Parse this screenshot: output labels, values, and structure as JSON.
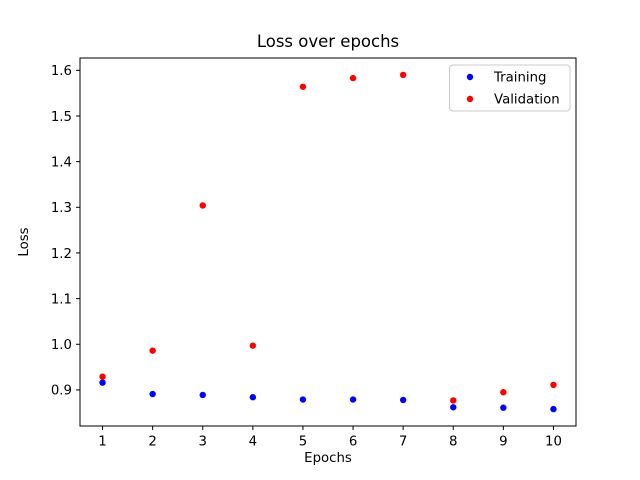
{
  "chart_data": {
    "type": "scatter",
    "title": "Loss over epochs",
    "xlabel": "Epochs",
    "ylabel": "Loss",
    "x": [
      1,
      2,
      3,
      4,
      5,
      6,
      7,
      8,
      9,
      10
    ],
    "series": [
      {
        "name": "Training",
        "color": "#0000ff",
        "values": [
          0.916,
          0.891,
          0.889,
          0.884,
          0.879,
          0.879,
          0.878,
          0.862,
          0.861,
          0.858
        ]
      },
      {
        "name": "Validation",
        "color": "#ff0000",
        "values": [
          0.929,
          0.986,
          1.304,
          0.997,
          1.564,
          1.583,
          1.59,
          0.877,
          0.895,
          0.911
        ]
      }
    ],
    "xlim": [
      0.55,
      10.45
    ],
    "ylim": [
      0.821,
      1.627
    ],
    "xticks": [
      1,
      2,
      3,
      4,
      5,
      6,
      7,
      8,
      9,
      10
    ],
    "yticks": [
      0.9,
      1.0,
      1.1,
      1.2,
      1.3,
      1.4,
      1.5,
      1.6
    ],
    "grid": false,
    "legend": {
      "position": "upper right"
    },
    "colors": {
      "spine": "#000000",
      "tick": "#000000",
      "legend_border": "#cccccc",
      "legend_bg": "#ffffff"
    }
  }
}
